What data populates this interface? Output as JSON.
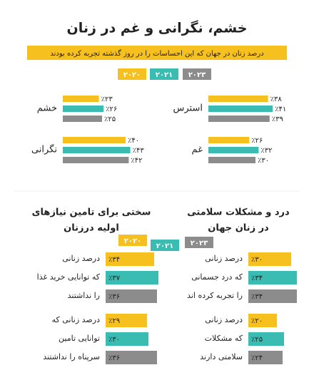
{
  "chart_data": [
    {
      "type": "bar",
      "title": "خشم، نگرانی و غم در زنان",
      "subtitle": "درصد زنان در جهان که این احساسات را در روز گذشته تجربه کرده بودند",
      "categories": [
        "استرس",
        "خشم",
        "غم",
        "نگرانی"
      ],
      "series": [
        {
          "name": "۲۰۲۰",
          "color": "#f6c01f",
          "values": [
            38,
            23,
            26,
            40
          ],
          "value_labels": [
            "٪۳۸",
            "٪۲۳",
            "٪۲۶",
            "٪۴۰"
          ]
        },
        {
          "name": "۲۰۲۱",
          "color": "#3bbcb3",
          "values": [
            41,
            26,
            32,
            43
          ],
          "value_labels": [
            "٪۴۱",
            "٪۲۶",
            "٪۳۲",
            "٪۴۳"
          ]
        },
        {
          "name": "۲۰۲۳",
          "color": "#8c8c8c",
          "values": [
            39,
            25,
            30,
            42
          ],
          "value_labels": [
            "٪۳۹",
            "٪۲۵",
            "٪۳۰",
            "٪۴۲"
          ]
        }
      ]
    },
    {
      "type": "bar",
      "title": [
        "سختی برای تامین نیازهای",
        "اولیه درزنان"
      ],
      "categories": [
        [
          "درصد زنانی",
          "که توانایی خرید غذا",
          "را نداشتند"
        ],
        [
          "درصد زنانی که",
          "توانایی تامین",
          "سرپناه را نداشتند"
        ]
      ],
      "series": [
        {
          "name": "۲۰۲۰",
          "color": "#f6c01f",
          "values": [
            34,
            29
          ],
          "value_labels": [
            "٪۳۴",
            "٪۲۹"
          ]
        },
        {
          "name": "۲۰۲۱",
          "color": "#3bbcb3",
          "values": [
            37,
            30
          ],
          "value_labels": [
            "٪۳۷",
            "٪۳۰"
          ]
        },
        {
          "name": "۲۰۲۳",
          "color": "#8c8c8c",
          "values": [
            36,
            36
          ],
          "value_labels": [
            "٪۳۶",
            "٪۳۶"
          ]
        }
      ]
    },
    {
      "type": "bar",
      "title": [
        "درد و مشکلات سلامتی",
        "در زنان جهان"
      ],
      "categories": [
        [
          "درصد زنانی",
          "که درد جسمانی",
          "را تجربه کرده اند"
        ],
        [
          "درصد زنانی",
          "که مشکلات",
          "سلامتی دارند"
        ]
      ],
      "series": [
        {
          "color": "#f6c01f",
          "values": [
            30,
            20
          ],
          "value_labels": [
            "٪۳۰",
            "٪۲۰"
          ]
        },
        {
          "color": "#3bbcb3",
          "values": [
            34,
            25
          ],
          "value_labels": [
            "٪۳۴",
            "٪۲۵"
          ]
        },
        {
          "color": "#8c8c8c",
          "values": [
            34,
            24
          ],
          "value_labels": [
            "٪۳۴",
            "٪۲۴"
          ]
        }
      ]
    }
  ]
}
